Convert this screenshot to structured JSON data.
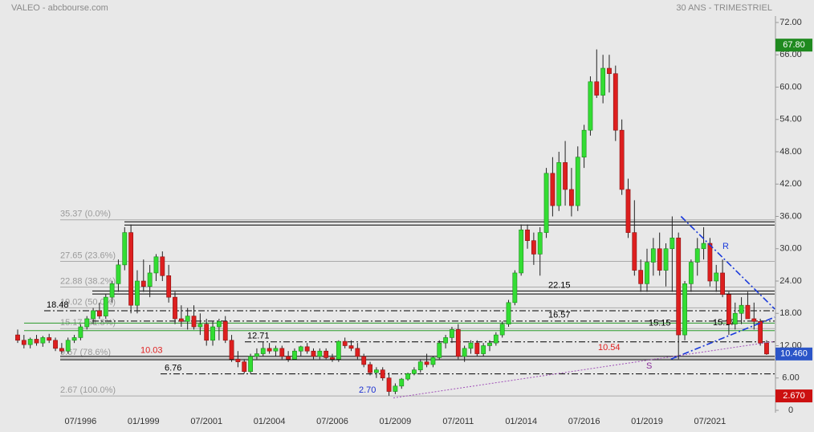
{
  "chart_data": {
    "type": "candlestick",
    "title": "VALEO - abcbourse.com",
    "subtitle": "30 ANS - TRIMESTRIEL",
    "categories": [
      null,
      null,
      null,
      null,
      null,
      null,
      null,
      null,
      null,
      null,
      "07/1996",
      null,
      null,
      null,
      null,
      null,
      null,
      null,
      null,
      null,
      "01/1999",
      null,
      null,
      null,
      null,
      null,
      null,
      null,
      null,
      null,
      "07/2001",
      null,
      null,
      null,
      null,
      null,
      null,
      null,
      null,
      null,
      "01/2004",
      null,
      null,
      null,
      null,
      null,
      null,
      null,
      null,
      null,
      "07/2006",
      null,
      null,
      null,
      null,
      null,
      null,
      null,
      null,
      null,
      "01/2009",
      null,
      null,
      null,
      null,
      null,
      null,
      null,
      null,
      null,
      "07/2011",
      null,
      null,
      null,
      null,
      null,
      null,
      null,
      null,
      null,
      "01/2014",
      null,
      null,
      null,
      null,
      null,
      null,
      null,
      null,
      null,
      "07/2016",
      null,
      null,
      null,
      null,
      null,
      null,
      null,
      null,
      null,
      "01/2019",
      null,
      null,
      null,
      null,
      null,
      null,
      null,
      null,
      null,
      "07/2021",
      null,
      null,
      null,
      null,
      null,
      null,
      null,
      null,
      null
    ],
    "open": [
      14,
      13,
      12.2,
      13.2,
      12.5,
      13.5,
      13,
      11.5,
      11,
      13,
      13.5,
      15.5,
      17,
      18.5,
      17.5,
      21,
      23.5,
      27,
      33,
      19.5,
      24,
      23,
      25.5,
      28.5,
      25,
      21,
      17,
      16.5,
      17.5,
      15.5,
      16,
      13,
      15.5,
      16.5,
      13,
      9.5,
      9,
      7.2,
      10,
      10.5,
      11.5,
      11,
      11.5,
      10,
      9.5,
      11,
      11.8,
      11,
      10,
      11,
      9.8,
      9.5,
      12.8,
      12,
      11.5,
      10,
      8.5,
      7,
      7.5,
      6,
      3.5,
      4.5,
      5.8,
      6.8,
      7.5,
      9,
      8.5,
      9.8,
      12.5,
      13.5,
      15,
      10,
      11.5,
      12.5,
      10.5,
      12,
      12.5,
      14,
      16,
      20,
      25.5,
      33.5,
      31.5,
      29,
      33,
      44,
      38,
      46,
      41,
      38,
      47,
      52,
      61,
      58.5,
      63.5,
      62.5,
      52,
      41,
      33,
      26,
      23.5,
      27.5,
      30,
      26,
      30,
      32,
      14,
      23.5,
      27.5,
      30,
      31,
      24,
      25.5,
      21.5,
      16,
      18,
      19.5,
      17,
      16.5,
      12.5
    ],
    "high": [
      15,
      14,
      13.5,
      14,
      13.8,
      14.2,
      13.5,
      12.5,
      13.5,
      14,
      16,
      17.5,
      19,
      20,
      21.5,
      24,
      28,
      34,
      34.5,
      26,
      28,
      27,
      29,
      29.5,
      27,
      22,
      19.5,
      19,
      19.5,
      18,
      17,
      16.5,
      17,
      17.5,
      14,
      11,
      9.5,
      10.5,
      11.5,
      12.7,
      12.5,
      12,
      12,
      11,
      11.5,
      12,
      12.5,
      11.5,
      11.5,
      11.5,
      10.5,
      13,
      13.5,
      13,
      12.5,
      10.5,
      9,
      8,
      8,
      7,
      5,
      6,
      7,
      8,
      9.5,
      10.5,
      10,
      13,
      14,
      15.5,
      16,
      12,
      13,
      13,
      12.5,
      13,
      14.5,
      16.5,
      20.5,
      26,
      34.5,
      34.5,
      33,
      34,
      45,
      47,
      48,
      50,
      45,
      49,
      53,
      62,
      67,
      66,
      66,
      64,
      54,
      43,
      39,
      28,
      30,
      32,
      33,
      31,
      36,
      33,
      24,
      28,
      32,
      34,
      32,
      27,
      28,
      22,
      20,
      21,
      22,
      20,
      17,
      13
    ],
    "low": [
      12.5,
      11.5,
      11.5,
      12,
      11.8,
      12.5,
      11,
      10.5,
      10.5,
      12.5,
      13,
      15,
      16,
      17,
      17,
      20,
      22,
      26,
      18,
      18,
      22,
      21,
      24,
      24,
      20,
      16,
      15.5,
      15,
      15,
      14,
      12,
      12,
      13,
      12.5,
      9,
      8,
      6.8,
      6.8,
      9.5,
      10,
      10.5,
      10,
      9.5,
      9,
      9.5,
      10,
      10.5,
      9.5,
      9.5,
      9.5,
      9,
      9,
      11.5,
      11,
      9.5,
      8,
      6.5,
      6,
      5.5,
      2.7,
      3,
      4,
      5.5,
      6.5,
      7,
      8,
      8,
      9.5,
      11.5,
      12.5,
      9.5,
      9,
      10.5,
      10,
      10,
      11,
      12,
      13.5,
      15.5,
      19.5,
      25,
      30,
      27,
      25,
      32,
      36,
      37,
      38,
      36,
      37,
      45,
      51,
      58,
      57,
      59,
      50,
      40,
      32,
      25,
      22,
      22,
      25,
      25,
      23,
      22,
      9.5,
      13,
      22,
      25,
      28,
      23,
      22,
      21,
      14,
      15,
      16,
      17,
      15,
      12,
      10.3
    ],
    "close": [
      13,
      12.2,
      13.2,
      12.5,
      13.5,
      13,
      11.5,
      11,
      13,
      13.5,
      15.5,
      17,
      18.5,
      17.5,
      21,
      23.5,
      27,
      33,
      19.5,
      24,
      23,
      25.5,
      28.5,
      25,
      21,
      17,
      16.5,
      17.5,
      15.5,
      16,
      13,
      15.5,
      16.5,
      13,
      9.5,
      9,
      7.2,
      10,
      10.5,
      11.5,
      11,
      11.5,
      10,
      9.5,
      11,
      11.8,
      11,
      10,
      11,
      9.8,
      9.5,
      12.8,
      12,
      11.5,
      10,
      8.5,
      7,
      7.5,
      6,
      3.5,
      4.5,
      5.8,
      6.8,
      7.5,
      9,
      8.5,
      9.8,
      12.5,
      13.5,
      15,
      10,
      11.5,
      12.5,
      10.5,
      12,
      12.5,
      14,
      16,
      20,
      25.5,
      33.5,
      31.5,
      29,
      33,
      44,
      38,
      46,
      41,
      38,
      47,
      52,
      61,
      58.5,
      63.5,
      62.5,
      52,
      41,
      33,
      26,
      23.5,
      27.5,
      30,
      26,
      30,
      32,
      14,
      23.5,
      27.5,
      30,
      31,
      24,
      25.5,
      21.5,
      16,
      18,
      19.5,
      17,
      16.5,
      12.5,
      10.46
    ],
    "up_color": "#33dd33",
    "down_color": "#dd1f1f",
    "ylim": [
      0,
      72
    ],
    "yticks": [
      0,
      {
        "value": 6,
        "label": "6.00"
      },
      {
        "value": 12,
        "label": "12.00"
      },
      {
        "value": 18,
        "label": "18.00"
      },
      {
        "value": 24,
        "label": "24.00"
      },
      {
        "value": 30,
        "label": "30.00"
      },
      {
        "value": 36,
        "label": "36.00"
      },
      {
        "value": 42,
        "label": "42.00"
      },
      {
        "value": 48,
        "label": "48.00"
      },
      {
        "value": 54,
        "label": "54.00"
      },
      {
        "value": 60,
        "label": "60.00"
      },
      {
        "value": 66,
        "label": "66.00"
      },
      {
        "value": 72,
        "label": "72.00"
      }
    ],
    "fib_levels": [
      {
        "value": 35.37,
        "label": "35.37  (0.0%)"
      },
      {
        "value": 27.65,
        "label": "27.65  (23.6%)"
      },
      {
        "value": 22.88,
        "label": "22.88  (38.2%)"
      },
      {
        "value": 19.02,
        "label": "19.02  (50.0%)"
      },
      {
        "value": 15.17,
        "label": "15.17  (61.8%)"
      },
      {
        "value": 9.67,
        "label": "9.67  (78.6%)"
      },
      {
        "value": 2.67,
        "label": "2.67  (100.0%)"
      }
    ],
    "levels": [
      {
        "value": 18.48,
        "label": "18.48",
        "color": "#000000",
        "line": "dashdot"
      },
      {
        "value": 22.15,
        "label": "22.15",
        "color": "#000000",
        "line": "solid"
      },
      {
        "value": 16.57,
        "label": "16.57",
        "color": "#000000",
        "line": "dashdot"
      },
      {
        "value": 12.71,
        "label": "12.71",
        "color": "#000000",
        "line": "dashdot"
      },
      {
        "value": 6.76,
        "label": "6.76",
        "color": "#000000",
        "line": "dashdot"
      },
      {
        "value": 10.03,
        "label": "10.03",
        "color": "#e02020",
        "line": "solid"
      },
      {
        "value": 10.54,
        "label": "10.54",
        "color": "#e02020",
        "line": "none"
      },
      {
        "value": 15.15,
        "label": "15.15",
        "color": "#000000",
        "line": "none"
      },
      {
        "value": 15.17,
        "label": "15.17",
        "color": "#000000",
        "line": "none"
      },
      {
        "value": 2.7,
        "label": "2.70",
        "color": "#1a2fd0",
        "line": "none"
      }
    ],
    "lines": [
      {
        "value": 35,
        "color": "#000000"
      },
      {
        "value": 34.4,
        "color": "#000000"
      },
      {
        "value": 21.6,
        "color": "#000000"
      },
      {
        "value": 16.2,
        "color": "#2a9a2a"
      },
      {
        "value": 14.8,
        "color": "#2a9a2a"
      },
      {
        "value": 9.4,
        "color": "#000000"
      }
    ],
    "trendlines": [
      {
        "label": "R",
        "color": "#1a3adb",
        "start": [
          105.4,
          36
        ],
        "end": [
          120.3,
          18.8
        ]
      },
      {
        "label": "S",
        "color": "#1a3adb",
        "label_color": "#8a2d9b",
        "start": [
          103.8,
          9.5
        ],
        "end": [
          120.3,
          17.3
        ]
      },
      {
        "color": "#a050b8",
        "start": [
          59.7,
          2.3
        ],
        "end": [
          120.3,
          12.8
        ]
      }
    ],
    "price_tags": [
      {
        "value": 67.8,
        "label": "67.80",
        "color": "#1f8a1f"
      },
      {
        "value": 10.46,
        "label": "10.460",
        "color": "#2b55c8"
      },
      {
        "value": 2.67,
        "label": "2.670",
        "color": "#cc1010"
      }
    ]
  }
}
